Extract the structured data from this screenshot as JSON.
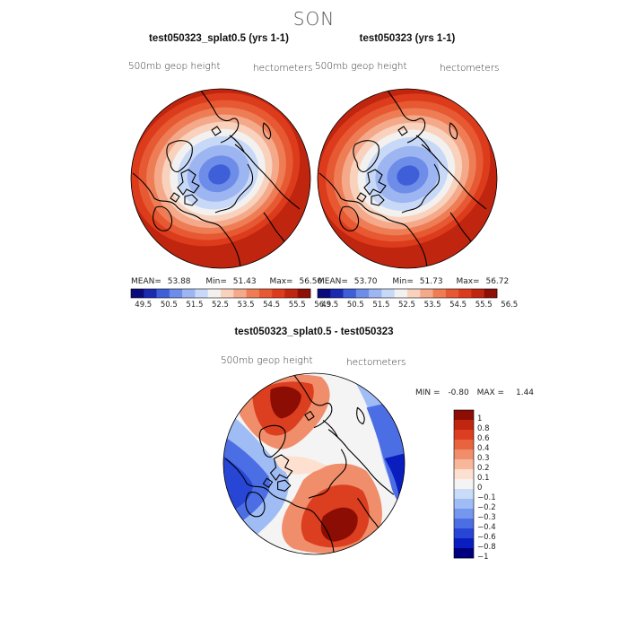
{
  "figure": {
    "suptitle": "SON",
    "colors": {
      "abs_scale": [
        "#0a0a7a",
        "#1a2bb0",
        "#3f5fd8",
        "#6d8de8",
        "#9db6f2",
        "#c8d8f7",
        "#f3f1ef",
        "#f9d2bd",
        "#f4a98a",
        "#ee7d55",
        "#e65932",
        "#dd3c1c",
        "#c0250f",
        "#8e0f06"
      ],
      "diff_scale": [
        "#00007e",
        "#0a1ec0",
        "#2846d6",
        "#4c6ee4",
        "#7596ee",
        "#9fbcf4",
        "#c9dbf9",
        "#f4f4f4",
        "#fde0cf",
        "#f8b79a",
        "#f08e6c",
        "#e8643f",
        "#db3f1f",
        "#c02510",
        "#8c0d04"
      ],
      "coastline": "#000000"
    }
  },
  "panels": {
    "left": {
      "title": "test050323_splat0.5 (yrs 1-1)",
      "field_label": "500mb geop height",
      "units": "hectometers",
      "stats": {
        "mean_label": "MEAN=",
        "mean": "53.88",
        "min_label": "Min=",
        "min": "51.43",
        "max_label": "Max=",
        "max": "56.50"
      }
    },
    "right": {
      "title": "test050323 (yrs 1-1)",
      "field_label": "500mb geop height",
      "units": "hectometers",
      "stats": {
        "mean_label": "MEAN=",
        "mean": "53.70",
        "min_label": "Min=",
        "min": "51.73",
        "max_label": "Max=",
        "max": "56.72"
      }
    },
    "diff": {
      "title": "test050323_splat0.5 - test050323",
      "field_label": "500mb geop height",
      "units": "hectometers",
      "stats": {
        "min_label": "MIN =",
        "min": "-0.80",
        "max_label": "MAX =",
        "max": "1.44"
      }
    }
  },
  "colorbars": {
    "abs_ticks": [
      "49.5",
      "50.5",
      "51.5",
      "52.5",
      "53.5",
      "54.5",
      "55.5",
      "56.5"
    ],
    "diff_ticks": [
      "1",
      "0.8",
      "0.6",
      "0.4",
      "0.3",
      "0.2",
      "0.1",
      "0",
      "−0.1",
      "−0.2",
      "−0.3",
      "−0.4",
      "−0.6",
      "−0.8",
      "−1"
    ]
  }
}
